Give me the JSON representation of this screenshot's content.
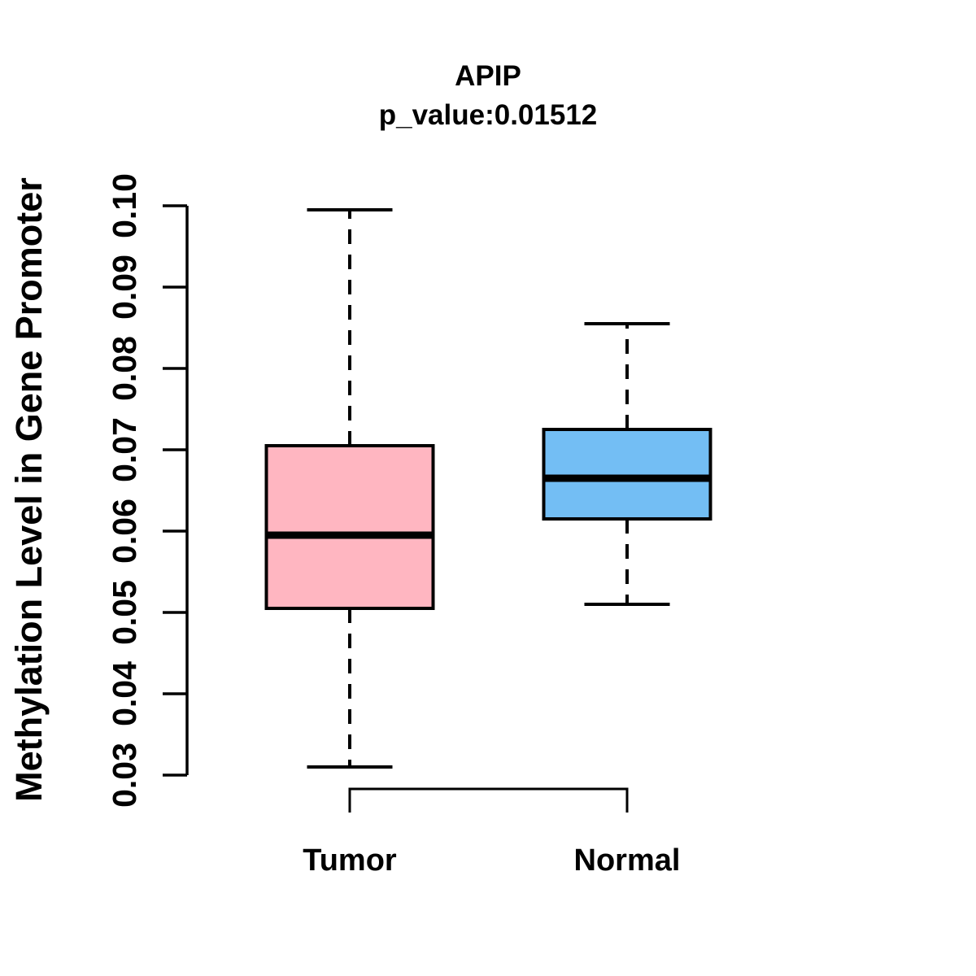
{
  "title": {
    "line1": "APIP",
    "line2": "p_value:0.01512"
  },
  "y_axis": {
    "label": "Methylation Level in Gene Promoter",
    "tick_labels": [
      "0.03",
      "0.04",
      "0.05",
      "0.06",
      "0.07",
      "0.08",
      "0.09",
      "0.10"
    ]
  },
  "x_axis": {
    "category_labels": [
      "Tumor",
      "Normal"
    ]
  },
  "chart_data": {
    "type": "boxplot",
    "title": "APIP",
    "subtitle": "p_value:0.01512",
    "gene": "APIP",
    "p_value": 0.01512,
    "ylabel": "Methylation Level in Gene Promoter",
    "ylim": [
      0.03,
      0.1
    ],
    "y_ticks": [
      0.03,
      0.04,
      0.05,
      0.06,
      0.07,
      0.08,
      0.09,
      0.1
    ],
    "grid": false,
    "categories": [
      "Tumor",
      "Normal"
    ],
    "series": [
      {
        "name": "Tumor",
        "color": "#FFB6C1",
        "stats": {
          "whisker_low": 0.031,
          "q1": 0.0505,
          "median": 0.0595,
          "q3": 0.0705,
          "whisker_high": 0.0995
        }
      },
      {
        "name": "Normal",
        "color": "#73BEF4",
        "stats": {
          "whisker_low": 0.051,
          "q1": 0.0615,
          "median": 0.0665,
          "q3": 0.0725,
          "whisker_high": 0.0855
        }
      }
    ]
  }
}
